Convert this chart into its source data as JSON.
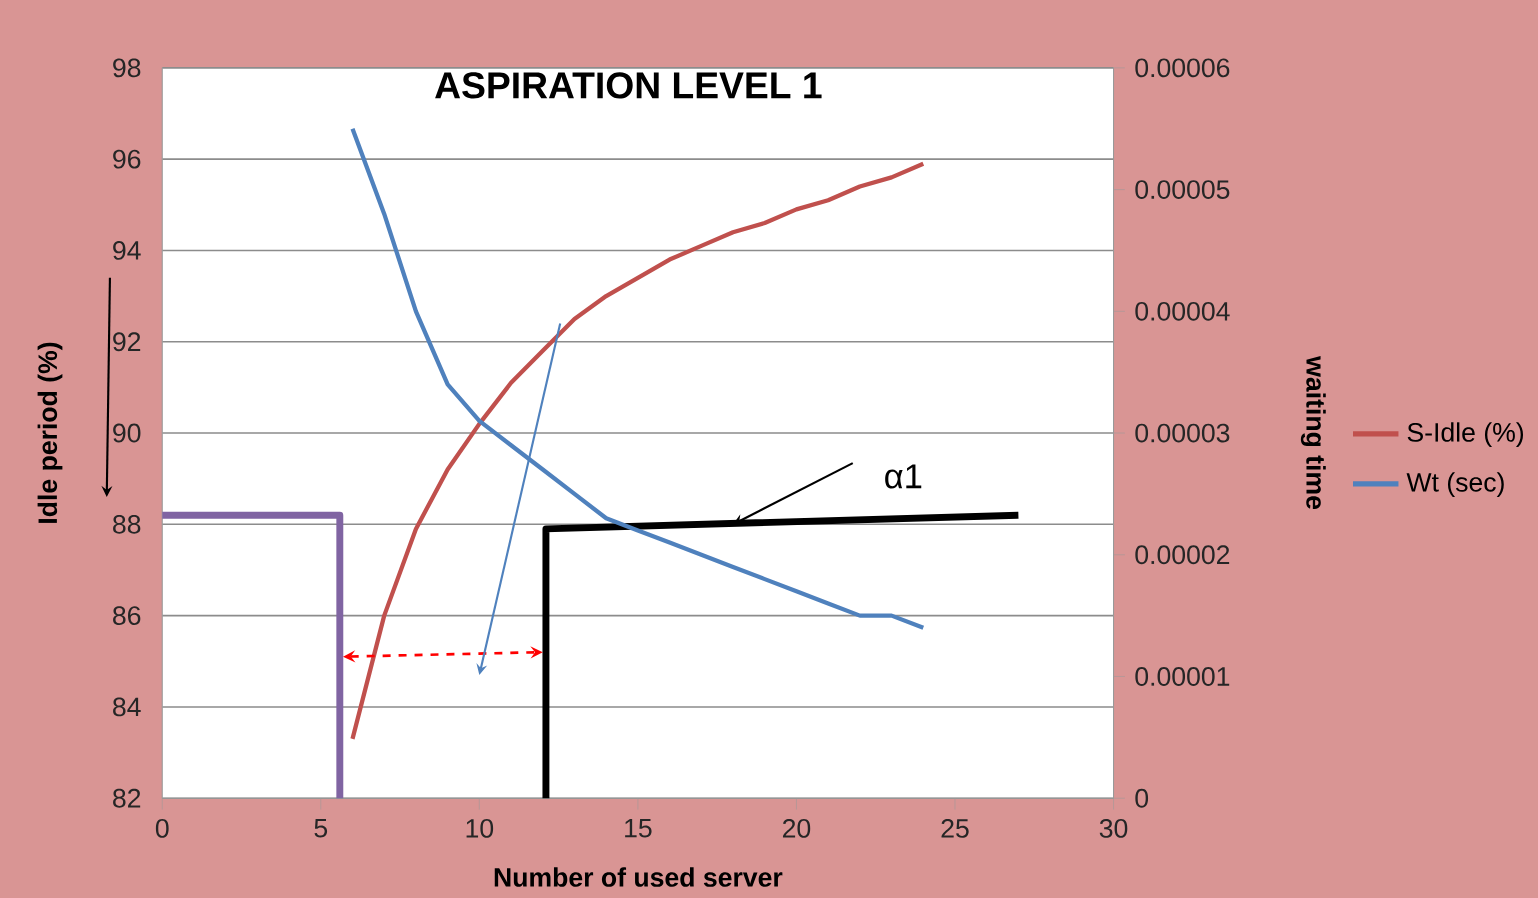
{
  "chart_data": {
    "type": "line",
    "title": "ASPIRATION  LEVEL 1",
    "xlabel": "Number of used server",
    "ylabel": "Idle period (%)",
    "y2label": "waiting time",
    "xlim": [
      0,
      30
    ],
    "xticks": [
      0,
      5,
      10,
      15,
      20,
      25,
      30
    ],
    "ylim": [
      82,
      98
    ],
    "yticks": [
      82,
      84,
      86,
      88,
      90,
      92,
      94,
      96,
      98
    ],
    "y2lim": [
      0,
      6e-05
    ],
    "y2ticks": [
      {
        "value": 0,
        "label": "0"
      },
      {
        "value": 1e-05,
        "label": "0.00001"
      },
      {
        "value": 2e-05,
        "label": "0.00002"
      },
      {
        "value": 3e-05,
        "label": "0.00003"
      },
      {
        "value": 4e-05,
        "label": "0.00004"
      },
      {
        "value": 5e-05,
        "label": "0.00005"
      },
      {
        "value": 6e-05,
        "label": "0.00006"
      }
    ],
    "x": [
      6,
      7,
      8,
      9,
      10,
      11,
      12,
      13,
      14,
      15,
      16,
      17,
      18,
      19,
      20,
      21,
      22,
      23,
      24
    ],
    "series": [
      {
        "name": "S-Idle (%)",
        "color": "#c0504d",
        "values": [
          83.3,
          86.0,
          87.9,
          89.2,
          90.2,
          91.1,
          91.8,
          92.5,
          93.0,
          93.4,
          93.8,
          94.1,
          94.4,
          94.6,
          94.9,
          95.1,
          95.4,
          95.6,
          95.9
        ]
      },
      {
        "name": "Wt (sec)",
        "color": "#4f81bd",
        "axis": "y2",
        "values": [
          5.5e-05,
          4.8e-05,
          4e-05,
          3.4e-05,
          3.1e-05,
          2.9e-05,
          2.7e-05,
          2.5e-05,
          2.3e-05,
          2.2e-05,
          2.1e-05,
          2e-05,
          1.9e-05,
          1.8e-05,
          1.7e-05,
          1.6e-05,
          1.5e-05,
          1.5e-05,
          1.4e-05
        ]
      },
      {
        "color": "#8064a2",
        "x": [
          0,
          5.6,
          5.6
        ],
        "values": [
          88.2,
          88.2,
          82
        ]
      },
      {
        "color": "#000000",
        "x": [
          12.1,
          12.1,
          27
        ],
        "values": [
          82,
          87.9,
          88.2
        ]
      }
    ],
    "annotations": [
      {
        "text": "α1",
        "x": 18,
        "y": 88
      }
    ],
    "grid": "y",
    "legend": "right"
  }
}
